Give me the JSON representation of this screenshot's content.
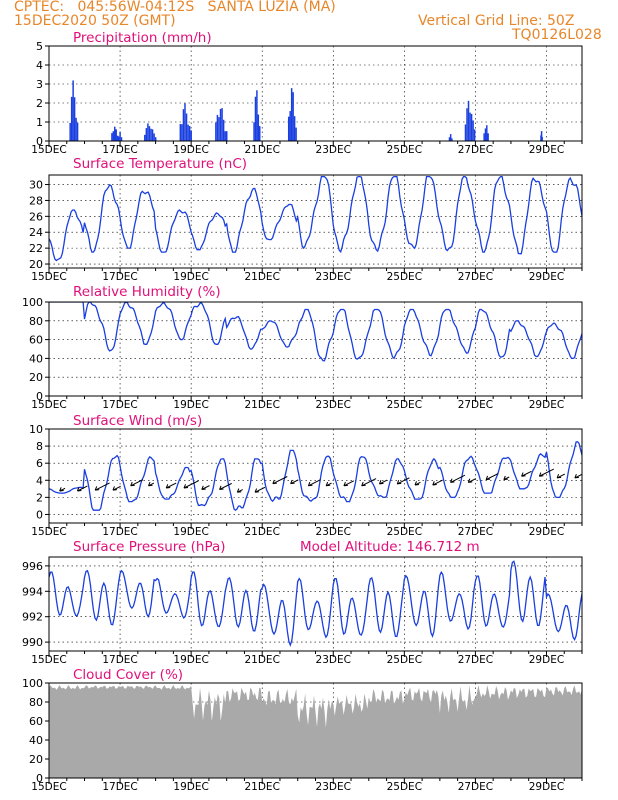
{
  "header": {
    "line1_left": "CPTEC:   045:56W-04:12S   SANTA LUZIA (MA)",
    "line2_left": "15DEC2020 50Z (GMT)",
    "line1_right": "Vertical Grid Line: 50Z",
    "line2_right": "TQ0126L028"
  },
  "colors": {
    "header": "#e8862a",
    "title": "#e0107a",
    "line": "#1a3fe0",
    "bar": "#1a3fe0",
    "cloud": "#a9a9a9",
    "axis": "#000000",
    "grid": "#000000"
  },
  "chart_data": [
    {
      "id": "precip",
      "type": "bar",
      "title": "Precipitation (mm/h)",
      "x_range": [
        0,
        15.0
      ],
      "ylim": [
        0,
        5
      ],
      "yticks": [
        "0",
        "1",
        "2",
        "3",
        "4",
        "5"
      ],
      "xticks": [
        "15DEC",
        "17DEC",
        "19DEC",
        "21DEC",
        "23DEC",
        "25DEC",
        "27DEC",
        "29DEC"
      ],
      "grid": true,
      "events": [
        {
          "x": 0.7,
          "peak": 3.2,
          "width": 0.25
        },
        {
          "x": 1.85,
          "peak": 0.9,
          "width": 0.2
        },
        {
          "x": 2.0,
          "peak": 0.5,
          "width": 0.12
        },
        {
          "x": 2.85,
          "peak": 1.0,
          "width": 0.35
        },
        {
          "x": 3.85,
          "peak": 2.0,
          "width": 0.35
        },
        {
          "x": 4.85,
          "peak": 2.0,
          "width": 0.35
        },
        {
          "x": 5.85,
          "peak": 2.8,
          "width": 0.2
        },
        {
          "x": 6.85,
          "peak": 3.0,
          "width": 0.25
        },
        {
          "x": 11.3,
          "peak": 0.4,
          "width": 0.1
        },
        {
          "x": 11.85,
          "peak": 2.3,
          "width": 0.3
        },
        {
          "x": 12.3,
          "peak": 1.0,
          "width": 0.15
        },
        {
          "x": 13.85,
          "peak": 0.6,
          "width": 0.05
        }
      ]
    },
    {
      "id": "temp",
      "type": "line",
      "title": "Surface Temperature (nC)",
      "x_range": [
        0,
        15.0
      ],
      "ylim": [
        19.5,
        31.2
      ],
      "yticks": [
        "20",
        "22",
        "24",
        "26",
        "28",
        "30"
      ],
      "xticks": [
        "15DEC",
        "17DEC",
        "19DEC",
        "21DEC",
        "23DEC",
        "25DEC",
        "27DEC",
        "29DEC"
      ],
      "grid": true,
      "series": [
        {
          "min": [
            20.3,
            21.5,
            22.0,
            21.5,
            21.8,
            21.5,
            23.0,
            22.0,
            21.5,
            21.3,
            21.5,
            21.3,
            21.5,
            21.3,
            21.5
          ],
          "max": [
            26.8,
            30.0,
            29.5,
            27.0,
            26.5,
            29.5,
            27.5,
            31.0,
            31.0,
            31.0,
            31.0,
            31.0,
            31.0,
            31.0,
            31.0
          ]
        }
      ]
    },
    {
      "id": "rh",
      "type": "line",
      "title": "Relative Humidity (%)",
      "x_range": [
        0,
        15.0
      ],
      "ylim": [
        0,
        100
      ],
      "yticks": [
        "0",
        "20",
        "40",
        "60",
        "80",
        "100"
      ],
      "xticks": [
        "15DEC",
        "17DEC",
        "19DEC",
        "21DEC",
        "23DEC",
        "25DEC",
        "27DEC",
        "29DEC"
      ],
      "grid": true,
      "series": [
        {
          "min": [
            100,
            48,
            55,
            60,
            55,
            50,
            52,
            35,
            35,
            38,
            42,
            45,
            40,
            42,
            40
          ],
          "max": [
            100,
            100,
            100,
            100,
            100,
            85,
            80,
            92,
            92,
            92,
            92,
            92,
            92,
            80,
            78
          ]
        }
      ]
    },
    {
      "id": "wind",
      "type": "line",
      "title": "Surface Wind (m/s)",
      "x_range": [
        0,
        15.0
      ],
      "ylim": [
        -1,
        10
      ],
      "yticks": [
        "0",
        "2",
        "4",
        "6",
        "8",
        "10"
      ],
      "xticks": [
        "15DEC",
        "17DEC",
        "19DEC",
        "21DEC",
        "23DEC",
        "25DEC",
        "27DEC",
        "29DEC"
      ],
      "grid": true,
      "series": [
        {
          "min": [
            2.5,
            0.5,
            1.5,
            1.8,
            1.0,
            0.5,
            1.5,
            1.5,
            1.5,
            2.0,
            1.8,
            2.0,
            2.5,
            3.0,
            2.0
          ],
          "max": [
            3.2,
            7.2,
            6.8,
            5.5,
            6.5,
            6.5,
            7.5,
            6.8,
            6.8,
            6.5,
            6.5,
            7.0,
            7.0,
            7.2,
            8.5
          ]
        }
      ]
    },
    {
      "id": "press",
      "type": "line",
      "title": "Surface Pressure (hPa)",
      "annotation": "Model Altitude: 146.712 m",
      "x_range": [
        0,
        15.0
      ],
      "ylim": [
        989.3,
        996.7
      ],
      "yticks": [
        "990",
        "992",
        "994",
        "996"
      ],
      "xticks": [
        "15DEC",
        "17DEC",
        "19DEC",
        "21DEC",
        "23DEC",
        "25DEC",
        "27DEC",
        "29DEC"
      ],
      "grid": true,
      "series": [
        {
          "min": [
            991.5,
            991.0,
            991.8,
            991.5,
            990.5,
            990.5,
            989.5,
            989.8,
            989.8,
            990.0,
            990.2,
            990.5,
            990.5,
            990.8,
            990.0
          ],
          "max": [
            995.5,
            995.8,
            995.8,
            995.0,
            995.5,
            995.2,
            994.8,
            995.0,
            995.0,
            995.2,
            995.5,
            995.5,
            995.2,
            996.5,
            994.0
          ]
        }
      ]
    },
    {
      "id": "cloud",
      "type": "area",
      "title": "Cloud Cover (%)",
      "x_range": [
        0,
        15.0
      ],
      "ylim": [
        0,
        100
      ],
      "yticks": [
        "0",
        "20",
        "40",
        "60",
        "80",
        "100"
      ],
      "xticks": [
        "15DEC",
        "17DEC",
        "19DEC",
        "21DEC",
        "23DEC",
        "25DEC",
        "27DEC",
        "29DEC"
      ],
      "grid": true,
      "series": [
        {
          "min": [
            85,
            88,
            88,
            85,
            10,
            55,
            45,
            5,
            35,
            50,
            55,
            30,
            60,
            65,
            70
          ],
          "max": [
            98,
            98,
            98,
            98,
            98,
            98,
            95,
            92,
            90,
            95,
            98,
            98,
            98,
            98,
            98
          ]
        }
      ]
    }
  ]
}
